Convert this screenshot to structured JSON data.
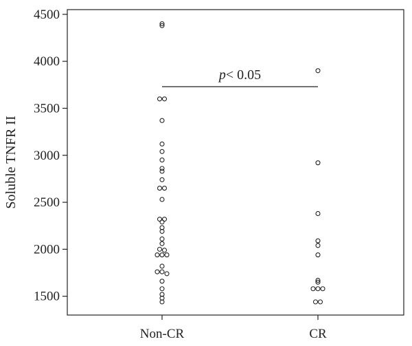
{
  "chart_data": {
    "type": "scatter",
    "xlabel": "",
    "ylabel": "Soluble TNFR II",
    "categories": [
      "Non-CR",
      "CR"
    ],
    "ylim": [
      1300,
      4550
    ],
    "yticks": [
      1500,
      2000,
      2500,
      3000,
      3500,
      4000,
      4500
    ],
    "series": [
      {
        "category": "Non-CR",
        "values": [
          4400,
          4380,
          3600,
          3600,
          3370,
          3120,
          3040,
          2950,
          2860,
          2830,
          2740,
          2650,
          2650,
          2530,
          2320,
          2320,
          2290,
          2230,
          2190,
          2110,
          2060,
          2000,
          1990,
          1940,
          1940,
          1940,
          1820,
          1760,
          1760,
          1740,
          1660,
          1580,
          1520,
          1480,
          1440
        ]
      },
      {
        "category": "CR",
        "values": [
          3900,
          2920,
          2380,
          2090,
          2040,
          1940,
          1670,
          1650,
          1580,
          1580,
          1580,
          1440,
          1440
        ]
      }
    ],
    "annotation": {
      "text": "p< 0.05",
      "italic_part": "p",
      "rest": "< 0.05",
      "bracket_y": 3730
    },
    "grid": false,
    "legend": "none"
  }
}
